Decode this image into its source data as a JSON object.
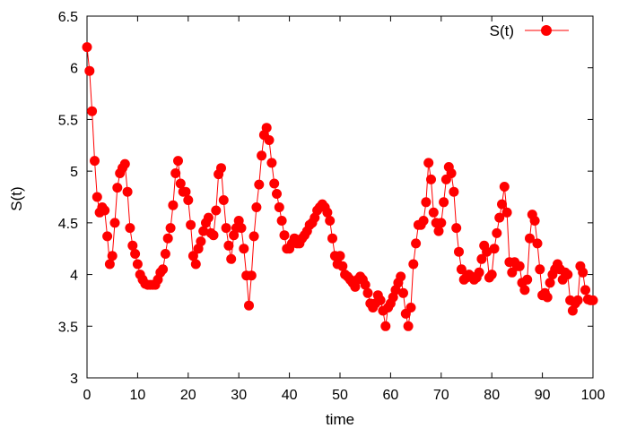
{
  "chart_data": {
    "type": "line",
    "title": "",
    "xlabel": "time",
    "ylabel": "S(t)",
    "xlim": [
      0,
      100
    ],
    "ylim": [
      3,
      6.5
    ],
    "xticks": [
      0,
      10,
      20,
      30,
      40,
      50,
      60,
      70,
      80,
      90,
      100
    ],
    "yticks": [
      3,
      3.5,
      4,
      4.5,
      5,
      5.5,
      6,
      6.5
    ],
    "xtick_labels": [
      "0",
      "10",
      "20",
      "30",
      "40",
      "50",
      "60",
      "70",
      "80",
      "90",
      "100"
    ],
    "ytick_labels": [
      "3",
      "3.5",
      "4",
      "4.5",
      "5",
      "5.5",
      "6",
      "6.5"
    ],
    "grid": false,
    "legend": {
      "position": "top-right",
      "entries": [
        "S(t)"
      ]
    },
    "series": [
      {
        "name": "S(t)",
        "color": "#ff0000",
        "marker": "circle",
        "x": [
          0,
          0.5,
          1,
          1.5,
          2,
          2.5,
          3,
          3.5,
          4,
          4.5,
          5,
          5.5,
          6,
          6.5,
          7,
          7.5,
          8,
          8.5,
          9,
          9.5,
          10,
          10.5,
          11,
          11.5,
          12,
          12.5,
          13,
          13.5,
          14,
          14.5,
          15,
          15.5,
          16,
          16.5,
          17,
          17.5,
          18,
          18.5,
          19,
          19.5,
          20,
          20.5,
          21,
          21.5,
          22,
          22.5,
          23,
          23.5,
          24,
          24.5,
          25,
          25.5,
          26,
          26.5,
          27,
          27.5,
          28,
          28.5,
          29,
          29.5,
          30,
          30.5,
          31,
          31.5,
          32,
          32.5,
          33,
          33.5,
          34,
          34.5,
          35,
          35.5,
          36,
          36.5,
          37,
          37.5,
          38,
          38.5,
          39,
          39.5,
          40,
          40.5,
          41,
          41.5,
          42,
          42.5,
          43,
          43.5,
          44,
          44.5,
          45,
          45.5,
          46,
          46.5,
          47,
          47.5,
          48,
          48.5,
          49,
          49.5,
          50,
          50.5,
          51,
          51.5,
          52,
          52.5,
          53,
          53.5,
          54,
          54.5,
          55,
          55.5,
          56,
          56.5,
          57,
          57.5,
          58,
          58.5,
          59,
          59.5,
          60,
          60.5,
          61,
          61.5,
          62,
          62.5,
          63,
          63.5,
          64,
          64.5,
          65,
          65.5,
          66,
          66.5,
          67,
          67.5,
          68,
          68.5,
          69,
          69.5,
          70,
          70.5,
          71,
          71.5,
          72,
          72.5,
          73,
          73.5,
          74,
          74.5,
          75,
          75.5,
          76,
          76.5,
          77,
          77.5,
          78,
          78.5,
          79,
          79.5,
          80,
          80.5,
          81,
          81.5,
          82,
          82.5,
          83,
          83.5,
          84,
          84.5,
          85,
          85.5,
          86,
          86.5,
          87,
          87.5,
          88,
          88.5,
          89,
          89.5,
          90,
          90.5,
          91,
          91.5,
          92,
          92.5,
          93,
          93.5,
          94,
          94.5,
          95,
          95.5,
          96,
          96.5,
          97,
          97.5,
          98,
          98.5,
          99,
          99.5,
          100
        ],
        "y": [
          6.2,
          5.97,
          5.58,
          5.1,
          4.75,
          4.6,
          4.65,
          4.62,
          4.37,
          4.1,
          4.18,
          4.5,
          4.84,
          4.98,
          5.03,
          5.07,
          4.8,
          4.45,
          4.28,
          4.2,
          4.1,
          4.0,
          3.95,
          3.91,
          3.9,
          3.9,
          3.9,
          3.9,
          3.95,
          4.02,
          4.05,
          4.2,
          4.35,
          4.45,
          4.67,
          4.98,
          5.1,
          4.88,
          4.8,
          4.8,
          4.72,
          4.48,
          4.18,
          4.1,
          4.25,
          4.32,
          4.42,
          4.5,
          4.55,
          4.4,
          4.38,
          4.62,
          4.97,
          5.03,
          4.72,
          4.45,
          4.28,
          4.15,
          4.38,
          4.45,
          4.52,
          4.45,
          4.25,
          3.99,
          3.7,
          3.99,
          4.37,
          4.65,
          4.87,
          5.15,
          5.35,
          5.42,
          5.3,
          5.08,
          4.88,
          4.78,
          4.65,
          4.52,
          4.38,
          4.25,
          4.25,
          4.3,
          4.35,
          4.3,
          4.3,
          4.35,
          4.38,
          4.42,
          4.48,
          4.5,
          4.55,
          4.62,
          4.65,
          4.68,
          4.65,
          4.6,
          4.52,
          4.35,
          4.18,
          4.1,
          4.18,
          4.08,
          4.0,
          3.98,
          3.95,
          3.92,
          3.88,
          3.95,
          3.98,
          3.95,
          3.9,
          3.82,
          3.72,
          3.68,
          3.72,
          3.8,
          3.75,
          3.65,
          3.5,
          3.68,
          3.72,
          3.78,
          3.85,
          3.92,
          3.98,
          3.82,
          3.62,
          3.5,
          3.68,
          4.1,
          4.3,
          4.48,
          4.48,
          4.52,
          4.7,
          5.08,
          4.92,
          4.6,
          4.5,
          4.42,
          4.5,
          4.7,
          4.92,
          5.04,
          4.98,
          4.8,
          4.45,
          4.22,
          4.05,
          3.95,
          3.97,
          4.0,
          3.98,
          3.95,
          3.97,
          4.02,
          4.15,
          4.28,
          4.22,
          3.97,
          4.0,
          4.25,
          4.4,
          4.55,
          4.68,
          4.85,
          4.6,
          4.12,
          4.02,
          4.12,
          4.08,
          4.08,
          3.92,
          3.85,
          3.95,
          4.35,
          4.58,
          4.52,
          4.3,
          4.05,
          3.8,
          3.82,
          3.78,
          3.92,
          4.0,
          4.05,
          4.1,
          4.05,
          3.95,
          4.02,
          4.0,
          3.75,
          3.65,
          3.72,
          3.75,
          4.08,
          4.02,
          3.85,
          3.76,
          3.75,
          3.75
        ]
      }
    ]
  }
}
